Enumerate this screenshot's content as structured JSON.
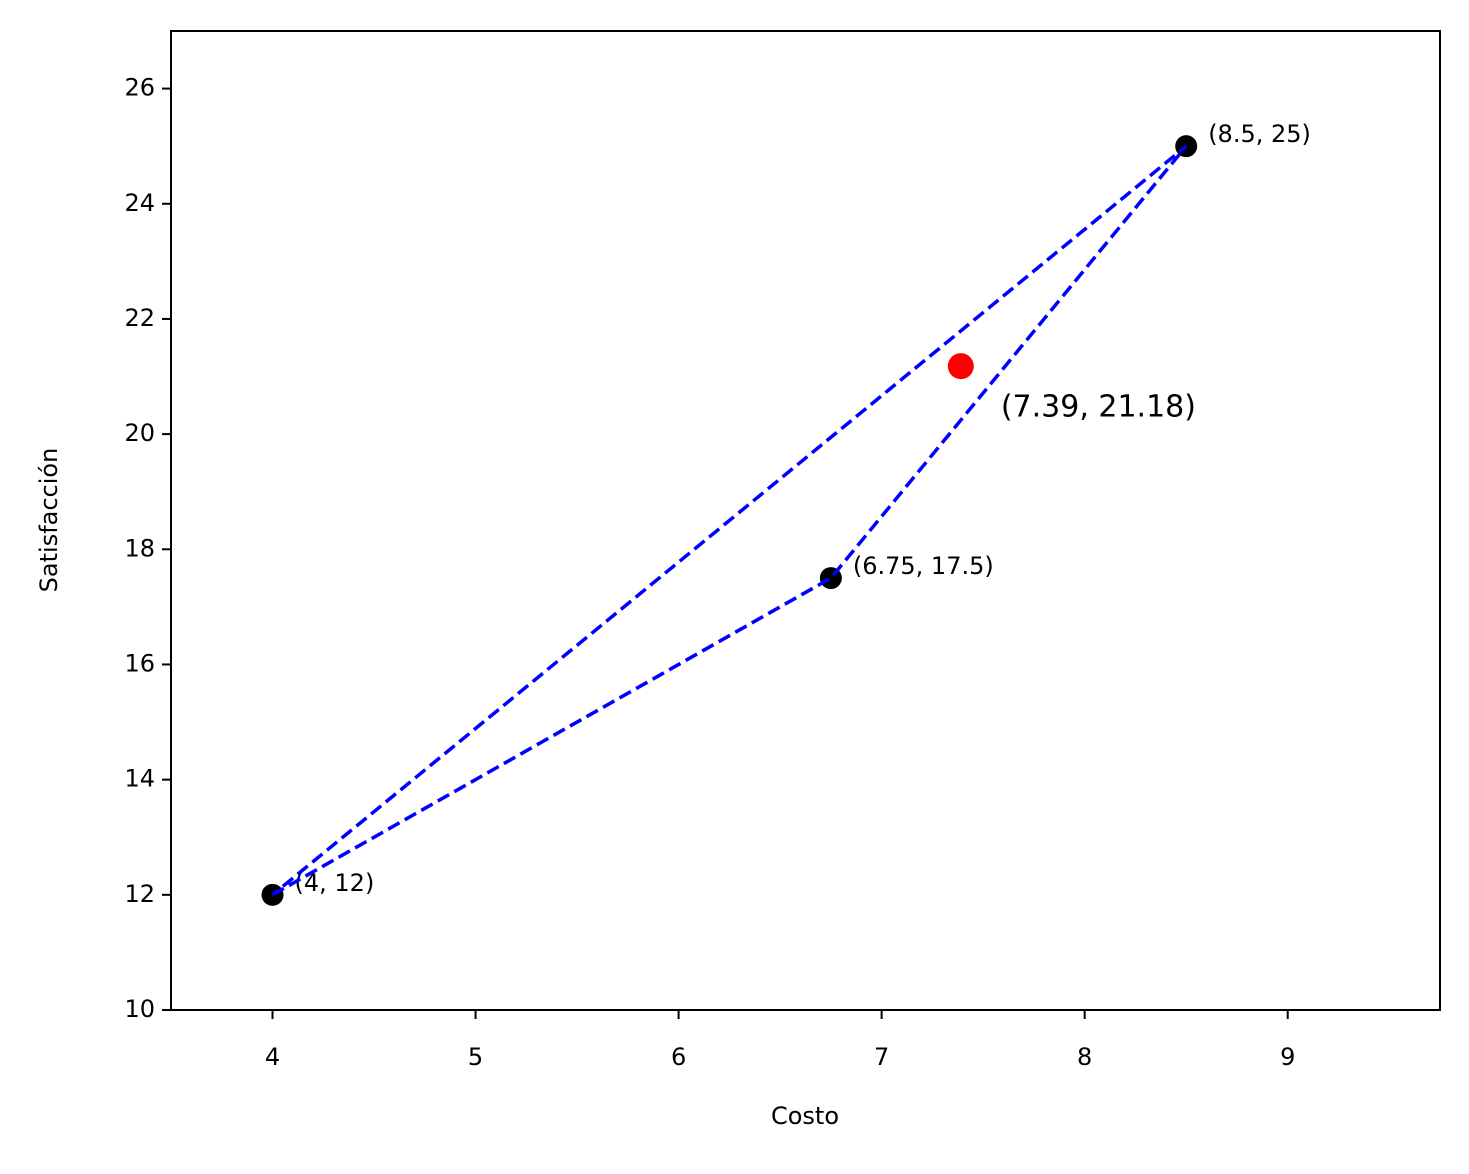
{
  "chart_data": {
    "type": "scatter",
    "xlabel": "Costo",
    "ylabel": "Satisfacción",
    "xlim": [
      3.5,
      9.75
    ],
    "ylim": [
      10,
      27
    ],
    "xticks": [
      4,
      5,
      6,
      7,
      8,
      9
    ],
    "yticks": [
      10,
      12,
      14,
      16,
      18,
      20,
      22,
      24,
      26
    ],
    "series": [
      {
        "color": "#000000",
        "x": [
          4,
          6.75,
          8.5
        ],
        "values": [
          12,
          17.5,
          25
        ],
        "value_labels": [
          "(4, 12)",
          "(6.75, 17.5)",
          "(8.5, 25)"
        ]
      },
      {
        "color": "#ff0000",
        "x": [
          7.39
        ],
        "values": [
          21.18
        ],
        "value_labels": [
          "(7.39, 21.18)"
        ]
      }
    ],
    "lines": [
      {
        "color": "#0000ff",
        "style": "dashed",
        "x": [
          4,
          6.75,
          8.5,
          4
        ],
        "values": [
          12,
          17.5,
          25,
          12
        ]
      }
    ]
  }
}
